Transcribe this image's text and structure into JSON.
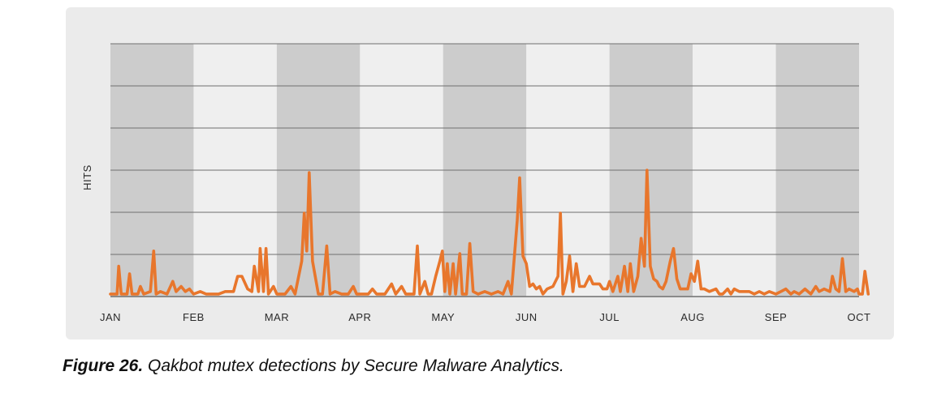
{
  "caption": {
    "label": "Figure 26.",
    "text": " Qakbot mutex detections by Secure Malware Analytics."
  },
  "colors": {
    "line": "#e8762c",
    "band_dark": "#cccccc",
    "band_light": "#efefef",
    "panel": "#ebebeb",
    "grid": "#6f6f6f"
  },
  "chart_data": {
    "type": "line",
    "title": "",
    "xlabel": "",
    "ylabel": "HITS",
    "x_tick_labels": [
      "JAN",
      "FEB",
      "MAR",
      "APR",
      "MAY",
      "JUN",
      "JUL",
      "AUG",
      "SEP",
      "OCT"
    ],
    "y_tick_labels": [],
    "grid": "horizontal",
    "alternating_month_bands": true,
    "ylim": [
      0,
      100
    ],
    "xlim": [
      0,
      9
    ],
    "series": [
      {
        "color": "#e8762c",
        "points": [
          [
            0.0,
            1
          ],
          [
            0.08,
            1
          ],
          [
            0.1,
            12
          ],
          [
            0.13,
            1
          ],
          [
            0.2,
            1
          ],
          [
            0.23,
            9
          ],
          [
            0.26,
            1
          ],
          [
            0.33,
            1
          ],
          [
            0.36,
            4
          ],
          [
            0.4,
            1
          ],
          [
            0.48,
            2
          ],
          [
            0.52,
            18
          ],
          [
            0.55,
            1
          ],
          [
            0.6,
            2
          ],
          [
            0.68,
            1
          ],
          [
            0.75,
            6
          ],
          [
            0.79,
            2
          ],
          [
            0.85,
            4
          ],
          [
            0.9,
            2
          ],
          [
            0.95,
            3
          ],
          [
            1.0,
            1
          ],
          [
            1.08,
            2
          ],
          [
            1.15,
            1
          ],
          [
            1.22,
            1
          ],
          [
            1.3,
            1
          ],
          [
            1.38,
            2
          ],
          [
            1.48,
            2
          ],
          [
            1.53,
            8
          ],
          [
            1.58,
            8
          ],
          [
            1.65,
            3
          ],
          [
            1.7,
            2
          ],
          [
            1.73,
            12
          ],
          [
            1.78,
            2
          ],
          [
            1.8,
            19
          ],
          [
            1.84,
            2
          ],
          [
            1.87,
            19
          ],
          [
            1.9,
            1
          ],
          [
            1.96,
            4
          ],
          [
            2.0,
            1
          ],
          [
            2.1,
            1
          ],
          [
            2.17,
            4
          ],
          [
            2.22,
            1
          ],
          [
            2.3,
            14
          ],
          [
            2.33,
            33
          ],
          [
            2.36,
            18
          ],
          [
            2.39,
            49
          ],
          [
            2.43,
            14
          ],
          [
            2.5,
            1
          ],
          [
            2.55,
            1
          ],
          [
            2.6,
            20
          ],
          [
            2.64,
            1
          ],
          [
            2.7,
            2
          ],
          [
            2.78,
            1
          ],
          [
            2.86,
            1
          ],
          [
            2.92,
            4
          ],
          [
            2.96,
            1
          ],
          [
            3.1,
            1
          ],
          [
            3.15,
            3
          ],
          [
            3.2,
            1
          ],
          [
            3.3,
            1
          ],
          [
            3.38,
            5
          ],
          [
            3.43,
            1
          ],
          [
            3.5,
            4
          ],
          [
            3.55,
            1
          ],
          [
            3.65,
            1
          ],
          [
            3.69,
            20
          ],
          [
            3.72,
            1
          ],
          [
            3.78,
            6
          ],
          [
            3.82,
            1
          ],
          [
            3.86,
            1
          ],
          [
            3.91,
            8
          ],
          [
            3.96,
            14
          ],
          [
            3.99,
            18
          ],
          [
            4.02,
            2
          ],
          [
            4.05,
            13
          ],
          [
            4.08,
            1
          ],
          [
            4.12,
            13
          ],
          [
            4.15,
            1
          ],
          [
            4.2,
            17
          ],
          [
            4.23,
            1
          ],
          [
            4.28,
            1
          ],
          [
            4.32,
            21
          ],
          [
            4.36,
            2
          ],
          [
            4.42,
            1
          ],
          [
            4.5,
            2
          ],
          [
            4.58,
            1
          ],
          [
            4.66,
            2
          ],
          [
            4.72,
            1
          ],
          [
            4.78,
            6
          ],
          [
            4.82,
            1
          ],
          [
            4.89,
            30
          ],
          [
            4.92,
            47
          ],
          [
            4.96,
            16
          ],
          [
            5.0,
            13
          ],
          [
            5.04,
            4
          ],
          [
            5.08,
            5
          ],
          [
            5.12,
            3
          ],
          [
            5.16,
            4
          ],
          [
            5.2,
            1
          ],
          [
            5.25,
            3
          ],
          [
            5.32,
            4
          ],
          [
            5.38,
            8
          ],
          [
            5.41,
            33
          ],
          [
            5.44,
            1
          ],
          [
            5.48,
            6
          ],
          [
            5.52,
            16
          ],
          [
            5.56,
            2
          ],
          [
            5.6,
            13
          ],
          [
            5.64,
            4
          ],
          [
            5.7,
            4
          ],
          [
            5.76,
            8
          ],
          [
            5.8,
            5
          ],
          [
            5.88,
            5
          ],
          [
            5.92,
            3
          ],
          [
            5.97,
            3
          ],
          [
            6.0,
            6
          ],
          [
            6.04,
            2
          ],
          [
            6.1,
            8
          ],
          [
            6.13,
            2
          ],
          [
            6.18,
            12
          ],
          [
            6.22,
            2
          ],
          [
            6.25,
            13
          ],
          [
            6.29,
            2
          ],
          [
            6.34,
            8
          ],
          [
            6.38,
            23
          ],
          [
            6.42,
            12
          ],
          [
            6.45,
            50
          ],
          [
            6.49,
            12
          ],
          [
            6.53,
            7
          ],
          [
            6.57,
            6
          ],
          [
            6.6,
            4
          ],
          [
            6.64,
            3
          ],
          [
            6.68,
            6
          ],
          [
            6.73,
            14
          ],
          [
            6.77,
            19
          ],
          [
            6.81,
            7
          ],
          [
            6.85,
            3
          ],
          [
            6.9,
            3
          ],
          [
            6.94,
            3
          ],
          [
            6.98,
            9
          ],
          [
            7.02,
            6
          ],
          [
            7.06,
            14
          ],
          [
            7.1,
            3
          ],
          [
            7.14,
            3
          ],
          [
            7.2,
            2
          ],
          [
            7.28,
            3
          ],
          [
            7.32,
            1
          ],
          [
            7.36,
            1
          ],
          [
            7.42,
            3
          ],
          [
            7.46,
            1
          ],
          [
            7.5,
            3
          ],
          [
            7.56,
            2
          ],
          [
            7.62,
            2
          ],
          [
            7.68,
            2
          ],
          [
            7.74,
            1
          ],
          [
            7.8,
            2
          ],
          [
            7.86,
            1
          ],
          [
            7.92,
            2
          ],
          [
            8.0,
            1
          ],
          [
            8.06,
            2
          ],
          [
            8.12,
            3
          ],
          [
            8.18,
            1
          ],
          [
            8.22,
            2
          ],
          [
            8.28,
            1
          ],
          [
            8.35,
            3
          ],
          [
            8.42,
            1
          ],
          [
            8.48,
            4
          ],
          [
            8.52,
            2
          ],
          [
            8.58,
            3
          ],
          [
            8.65,
            2
          ],
          [
            8.68,
            8
          ],
          [
            8.72,
            3
          ],
          [
            8.76,
            2
          ],
          [
            8.8,
            15
          ],
          [
            8.84,
            2
          ],
          [
            8.88,
            3
          ],
          [
            8.94,
            2
          ],
          [
            8.98,
            3
          ],
          [
            9.0,
            1
          ],
          [
            9.04,
            1
          ],
          [
            9.07,
            10
          ],
          [
            9.11,
            1
          ]
        ]
      }
    ]
  }
}
